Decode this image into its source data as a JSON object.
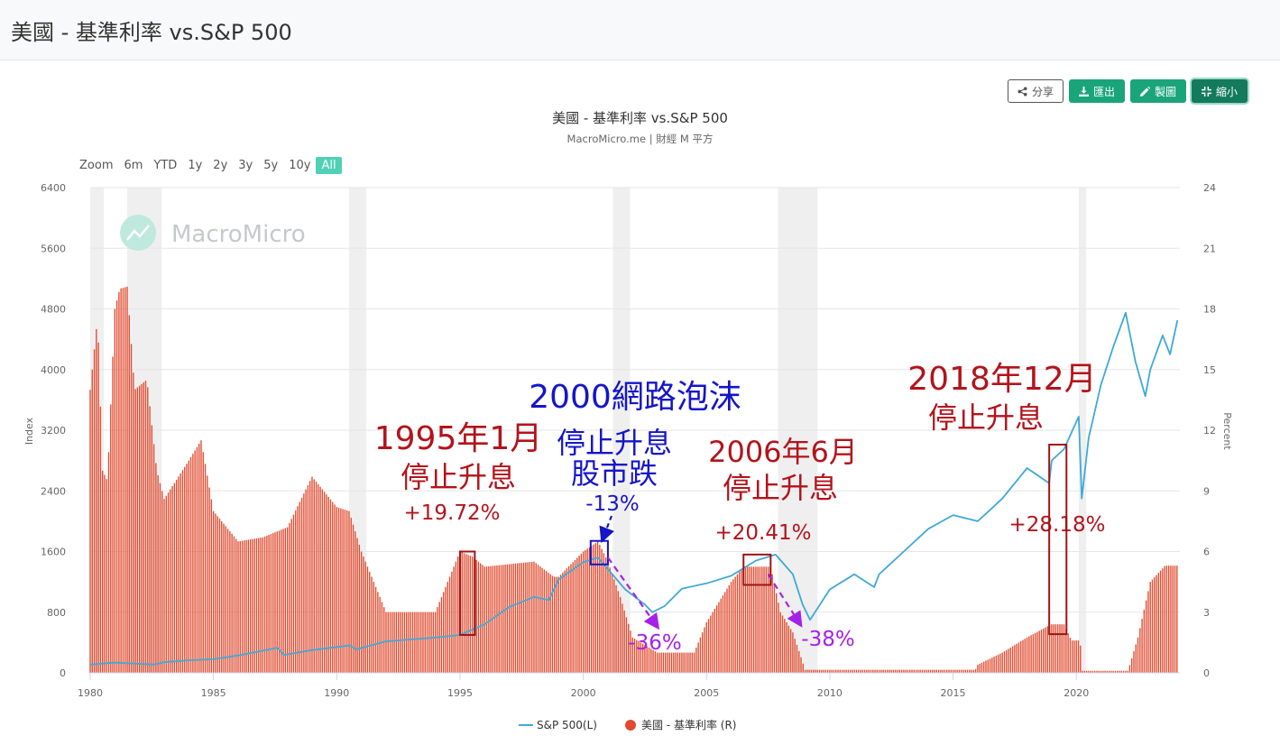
{
  "page": {
    "title": "美國 - 基準利率 vs.S&P 500"
  },
  "toolbar": {
    "share_label": "分享",
    "export_label": "匯出",
    "edit_label": "製圖",
    "shrink_label": "縮小"
  },
  "zoom": {
    "label": "Zoom",
    "options": [
      "6m",
      "YTD",
      "1y",
      "2y",
      "3y",
      "5y",
      "10y",
      "All"
    ],
    "active": "All"
  },
  "watermark": {
    "text": "MacroMicro"
  },
  "chart_data": {
    "type": "line+bar",
    "title": "美國 - 基準利率 vs.S&P 500",
    "subtitle": "MacroMicro.me | 財經 M 平方",
    "ylabel_left": "Index",
    "ylabel_right": "Percent",
    "ylim_left": [
      0,
      6400
    ],
    "yticks_left": [
      0,
      800,
      1600,
      2400,
      3200,
      4000,
      4800,
      5600,
      6400
    ],
    "ylim_right": [
      0,
      24
    ],
    "yticks_right": [
      0,
      3,
      6,
      9,
      12,
      15,
      18,
      21,
      24
    ],
    "xlim": [
      1980,
      2024.2
    ],
    "xticks": [
      1980,
      1985,
      1990,
      1995,
      2000,
      2005,
      2010,
      2015,
      2020
    ],
    "recessions": [
      [
        1980.0,
        1980.55
      ],
      [
        1981.5,
        1982.9
      ],
      [
        1990.5,
        1991.2
      ],
      [
        2001.2,
        2001.9
      ],
      [
        2007.9,
        2009.5
      ],
      [
        2020.1,
        2020.4
      ]
    ],
    "series": [
      {
        "name": "S&P 500(L)",
        "color": "#3fa9d6",
        "axis": "left",
        "points": [
          [
            1980,
            108
          ],
          [
            1980.6,
            125
          ],
          [
            1981,
            135
          ],
          [
            1981.6,
            125
          ],
          [
            1982.6,
            110
          ],
          [
            1983,
            140
          ],
          [
            1984,
            165
          ],
          [
            1985,
            180
          ],
          [
            1986,
            230
          ],
          [
            1987.6,
            330
          ],
          [
            1987.85,
            235
          ],
          [
            1989,
            300
          ],
          [
            1990.5,
            360
          ],
          [
            1990.8,
            310
          ],
          [
            1992,
            415
          ],
          [
            1994,
            465
          ],
          [
            1995,
            500
          ],
          [
            1996,
            640
          ],
          [
            1997,
            870
          ],
          [
            1998,
            1000
          ],
          [
            1998.6,
            960
          ],
          [
            1999,
            1230
          ],
          [
            2000,
            1460
          ],
          [
            2000.6,
            1520
          ],
          [
            2001.7,
            1100
          ],
          [
            2002.5,
            900
          ],
          [
            2002.8,
            800
          ],
          [
            2003.3,
            880
          ],
          [
            2004,
            1110
          ],
          [
            2005,
            1180
          ],
          [
            2006,
            1280
          ],
          [
            2007,
            1480
          ],
          [
            2007.8,
            1560
          ],
          [
            2008.5,
            1300
          ],
          [
            2008.9,
            900
          ],
          [
            2009.2,
            700
          ],
          [
            2010,
            1100
          ],
          [
            2011,
            1300
          ],
          [
            2011.8,
            1130
          ],
          [
            2012,
            1300
          ],
          [
            2013,
            1600
          ],
          [
            2014,
            1900
          ],
          [
            2015,
            2080
          ],
          [
            2016,
            2000
          ],
          [
            2016.5,
            2150
          ],
          [
            2017,
            2300
          ],
          [
            2018,
            2700
          ],
          [
            2018.9,
            2500
          ],
          [
            2019,
            2800
          ],
          [
            2019.5,
            2950
          ],
          [
            2020.1,
            3380
          ],
          [
            2020.22,
            2300
          ],
          [
            2020.5,
            3100
          ],
          [
            2021,
            3800
          ],
          [
            2021.5,
            4300
          ],
          [
            2022,
            4750
          ],
          [
            2022.4,
            4100
          ],
          [
            2022.8,
            3650
          ],
          [
            2023,
            4000
          ],
          [
            2023.5,
            4450
          ],
          [
            2023.8,
            4200
          ],
          [
            2024.1,
            4650
          ]
        ]
      },
      {
        "name": "美國 - 基準利率 (R)",
        "color": "#e04a2f",
        "axis": "right",
        "points": [
          [
            1980,
            14
          ],
          [
            1980.3,
            17.6
          ],
          [
            1980.5,
            10
          ],
          [
            1980.7,
            9.5
          ],
          [
            1981,
            18
          ],
          [
            1981.2,
            19
          ],
          [
            1981.5,
            19.1
          ],
          [
            1981.8,
            14
          ],
          [
            1982.3,
            14.5
          ],
          [
            1982.7,
            10
          ],
          [
            1983,
            8.6
          ],
          [
            1984,
            10.5
          ],
          [
            1984.5,
            11.5
          ],
          [
            1985,
            8
          ],
          [
            1986,
            6.5
          ],
          [
            1987,
            6.7
          ],
          [
            1988,
            7.2
          ],
          [
            1989,
            9.7
          ],
          [
            1990,
            8.2
          ],
          [
            1990.5,
            8
          ],
          [
            1991,
            6
          ],
          [
            1992,
            3
          ],
          [
            1993,
            3
          ],
          [
            1994,
            3
          ],
          [
            1994.5,
            4.5
          ],
          [
            1995,
            6
          ],
          [
            1995.5,
            5.75
          ],
          [
            1996,
            5.25
          ],
          [
            1998,
            5.5
          ],
          [
            1998.8,
            4.75
          ],
          [
            1999,
            4.75
          ],
          [
            2000,
            6
          ],
          [
            2000.6,
            6.5
          ],
          [
            2001,
            5.5
          ],
          [
            2001.5,
            3.75
          ],
          [
            2002,
            1.75
          ],
          [
            2003,
            1
          ],
          [
            2004.5,
            1
          ],
          [
            2005,
            2.5
          ],
          [
            2006,
            4.5
          ],
          [
            2006.5,
            5.25
          ],
          [
            2007.6,
            5.25
          ],
          [
            2008,
            3
          ],
          [
            2008.5,
            2
          ],
          [
            2009,
            0.15
          ],
          [
            2015.9,
            0.15
          ],
          [
            2016,
            0.4
          ],
          [
            2017,
            1
          ],
          [
            2018,
            1.75
          ],
          [
            2018.98,
            2.4
          ],
          [
            2019.5,
            2.4
          ],
          [
            2019.8,
            1.6
          ],
          [
            2020.15,
            1.6
          ],
          [
            2020.25,
            0.1
          ],
          [
            2022.1,
            0.1
          ],
          [
            2022.5,
            1.75
          ],
          [
            2023,
            4.5
          ],
          [
            2023.6,
            5.3
          ],
          [
            2024.1,
            5.3
          ]
        ]
      }
    ],
    "annotations": [
      {
        "text": "1995年1月",
        "color": "#b3131b"
      },
      {
        "text": "停止升息",
        "color": "#b3131b"
      },
      {
        "text": "+19.72%",
        "color": "#b3131b"
      },
      {
        "text": "2000網路泡沫",
        "color": "#1515c9"
      },
      {
        "text": "停止升息",
        "color": "#1515c9"
      },
      {
        "text": "股市跌",
        "color": "#1515c9"
      },
      {
        "text": "-13%",
        "color": "#1515c9"
      },
      {
        "text": "-36%",
        "color": "#a621e8"
      },
      {
        "text": "2006年6月",
        "color": "#b3131b"
      },
      {
        "text": "停止升息",
        "color": "#b3131b"
      },
      {
        "text": "+20.41%",
        "color": "#b3131b"
      },
      {
        "text": "-38%",
        "color": "#a621e8"
      },
      {
        "text": "2018年12月",
        "color": "#b3131b"
      },
      {
        "text": "停止升息",
        "color": "#b3131b"
      },
      {
        "text": "+28.18%",
        "color": "#b3131b"
      }
    ],
    "legend": {
      "placement": "bottom-center"
    }
  }
}
